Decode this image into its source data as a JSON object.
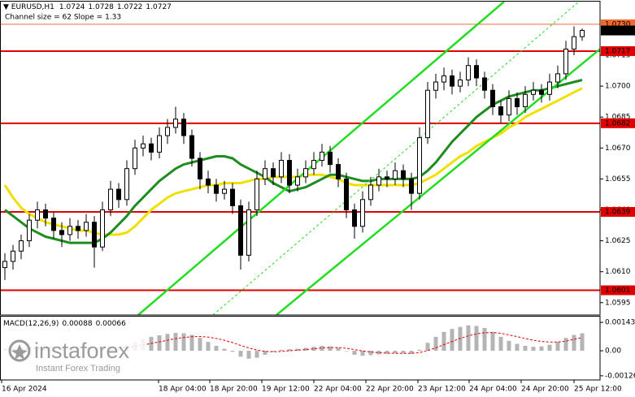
{
  "chart_data": {
    "type": "candlestick",
    "symbol": "EURUSD,H1",
    "subtitle": "Channel size = 62 Slope = 1.33",
    "xlim": [
      -0.6,
      73.2
    ],
    "xticks": [
      {
        "value": -0.4,
        "label": "16 Apr 2024"
      },
      {
        "value": 18.9,
        "label": "18 Apr 04:00"
      },
      {
        "value": 25.2,
        "label": "18 Apr 20:00"
      },
      {
        "value": 31.6,
        "label": "19 Apr 12:00"
      },
      {
        "value": 38.0,
        "label": "22 Apr 04:00"
      },
      {
        "value": 44.4,
        "label": "22 Apr 20:00"
      },
      {
        "value": 50.8,
        "label": "23 Apr 12:00"
      },
      {
        "value": 57.1,
        "label": "24 Apr 04:00"
      },
      {
        "value": 63.5,
        "label": "24 Apr 20:00"
      },
      {
        "value": 70.0,
        "label": "25 Apr 12:00"
      }
    ],
    "ylim": [
      1.0589,
      1.0741
    ],
    "yticks": [
      1.0715,
      {
        "value": 1.07,
        "label": "1.0700"
      },
      1.0685,
      {
        "value": 1.067,
        "label": "1.0670"
      },
      1.0655,
      {
        "value": 1.064,
        "label": "1.0640"
      },
      1.0625,
      {
        "value": 1.061,
        "label": "1.0610"
      },
      1.0595
    ],
    "ohlc": [
      [
        1.0612,
        1.0619,
        1.0606,
        1.0615
      ],
      [
        1.0615,
        1.0623,
        1.0611,
        1.062
      ],
      [
        1.062,
        1.0628,
        1.0616,
        1.0625
      ],
      [
        1.0625,
        1.0638,
        1.0622,
        1.0635
      ],
      [
        1.0635,
        1.0644,
        1.0631,
        1.064
      ],
      [
        1.064,
        1.0643,
        1.0632,
        1.0636
      ],
      [
        1.0636,
        1.0639,
        1.0626,
        1.063
      ],
      [
        1.063,
        1.0634,
        1.0622,
        1.0628
      ],
      [
        1.0628,
        1.0636,
        1.0625,
        1.0632
      ],
      [
        1.0632,
        1.0635,
        1.0626,
        1.063
      ],
      [
        1.063,
        1.0638,
        1.0627,
        1.0634
      ],
      [
        1.0634,
        1.0637,
        1.0612,
        1.0622
      ],
      [
        1.0622,
        1.0644,
        1.062,
        1.064
      ],
      [
        1.064,
        1.0654,
        1.0637,
        1.065
      ],
      [
        1.065,
        1.0653,
        1.0641,
        1.0645
      ],
      [
        1.0645,
        1.0664,
        1.0642,
        1.066
      ],
      [
        1.066,
        1.0674,
        1.0657,
        1.067
      ],
      [
        1.067,
        1.0676,
        1.0666,
        1.0672
      ],
      [
        1.0672,
        1.0675,
        1.0664,
        1.0668
      ],
      [
        1.0668,
        1.068,
        1.0665,
        1.0676
      ],
      [
        1.0676,
        1.0684,
        1.0672,
        1.068
      ],
      [
        1.068,
        1.069,
        1.0677,
        1.0684
      ],
      [
        1.0684,
        1.0687,
        1.0672,
        1.0676
      ],
      [
        1.0676,
        1.0679,
        1.0661,
        1.0665
      ],
      [
        1.0665,
        1.0668,
        1.065,
        1.0655
      ],
      [
        1.0655,
        1.0659,
        1.0648,
        1.0652
      ],
      [
        1.0652,
        1.0655,
        1.0644,
        1.0648
      ],
      [
        1.0648,
        1.0654,
        1.0645,
        1.065
      ],
      [
        1.065,
        1.0653,
        1.0638,
        1.0642
      ],
      [
        1.0642,
        1.0645,
        1.0611,
        1.0618
      ],
      [
        1.0618,
        1.0644,
        1.0615,
        1.064
      ],
      [
        1.064,
        1.0659,
        1.0637,
        1.0655
      ],
      [
        1.0655,
        1.0664,
        1.0652,
        1.066
      ],
      [
        1.066,
        1.0663,
        1.0652,
        1.0656
      ],
      [
        1.0656,
        1.0668,
        1.0653,
        1.0664
      ],
      [
        1.0664,
        1.0667,
        1.0648,
        1.0652
      ],
      [
        1.0652,
        1.066,
        1.0649,
        1.0656
      ],
      [
        1.0656,
        1.0664,
        1.0653,
        1.066
      ],
      [
        1.066,
        1.0668,
        1.0657,
        1.0664
      ],
      [
        1.0664,
        1.0672,
        1.0661,
        1.0668
      ],
      [
        1.0668,
        1.0671,
        1.0658,
        1.0662
      ],
      [
        1.0662,
        1.0665,
        1.0651,
        1.0655
      ],
      [
        1.0655,
        1.0658,
        1.0636,
        1.064
      ],
      [
        1.064,
        1.0643,
        1.0626,
        1.0632
      ],
      [
        1.0632,
        1.0649,
        1.0629,
        1.0645
      ],
      [
        1.0645,
        1.0656,
        1.0642,
        1.0652
      ],
      [
        1.0652,
        1.066,
        1.0649,
        1.0656
      ],
      [
        1.0656,
        1.0659,
        1.0651,
        1.0655
      ],
      [
        1.0655,
        1.0663,
        1.0652,
        1.0659
      ],
      [
        1.0659,
        1.0662,
        1.0651,
        1.0655
      ],
      [
        1.0655,
        1.0658,
        1.064,
        1.0648
      ],
      [
        1.0648,
        1.068,
        1.0645,
        1.0675
      ],
      [
        1.0675,
        1.0702,
        1.0672,
        1.0698
      ],
      [
        1.0698,
        1.0706,
        1.0694,
        1.0702
      ],
      [
        1.0702,
        1.0709,
        1.0698,
        1.0705
      ],
      [
        1.0705,
        1.0708,
        1.0696,
        1.07
      ],
      [
        1.07,
        1.0707,
        1.0697,
        1.0703
      ],
      [
        1.0703,
        1.0714,
        1.07,
        1.071
      ],
      [
        1.071,
        1.0713,
        1.07,
        1.0704
      ],
      [
        1.0704,
        1.0707,
        1.0694,
        1.0698
      ],
      [
        1.0698,
        1.0701,
        1.0686,
        1.069
      ],
      [
        1.069,
        1.0693,
        1.0682,
        1.0686
      ],
      [
        1.0686,
        1.0698,
        1.0683,
        1.0694
      ],
      [
        1.0694,
        1.0697,
        1.0686,
        1.069
      ],
      [
        1.069,
        1.07,
        1.0687,
        1.0696
      ],
      [
        1.0696,
        1.0702,
        1.0693,
        1.0698
      ],
      [
        1.0698,
        1.0701,
        1.0692,
        1.0696
      ],
      [
        1.0696,
        1.0706,
        1.0693,
        1.0702
      ],
      [
        1.0702,
        1.071,
        1.0699,
        1.0706
      ],
      [
        1.0706,
        1.0722,
        1.0703,
        1.0718
      ],
      [
        1.0718,
        1.0729,
        1.0715,
        1.0724
      ],
      [
        1.0724,
        1.0728,
        1.0722,
        1.0727
      ]
    ],
    "series": [
      {
        "color": "#f0e000",
        "values": [
          1.0652,
          1.0646,
          1.0641,
          1.0638,
          1.0636,
          1.0634,
          1.0633,
          1.0632,
          1.0631,
          1.063,
          1.063,
          1.0629,
          1.0628,
          1.0628,
          1.0628,
          1.0629,
          1.0632,
          1.0636,
          1.064,
          1.0643,
          1.0646,
          1.0648,
          1.0649,
          1.065,
          1.0651,
          1.0652,
          1.0652,
          1.0653,
          1.0653,
          1.0653,
          1.0654,
          1.0655,
          1.0655,
          1.0656,
          1.0656,
          1.0656,
          1.0656,
          1.0657,
          1.0657,
          1.0657,
          1.0656,
          1.0655,
          1.0653,
          1.0652,
          1.0652,
          1.0652,
          1.0652,
          1.0652,
          1.0652,
          1.0652,
          1.0652,
          1.0653,
          1.0655,
          1.0657,
          1.066,
          1.0663,
          1.0666,
          1.0668,
          1.0671,
          1.0673,
          1.0675,
          1.0677,
          1.068,
          1.0682,
          1.0685,
          1.0687,
          1.0689,
          1.0691,
          1.0693,
          1.0695,
          1.0697,
          1.0699
        ]
      },
      {
        "color": "#1e8c1e",
        "values": [
          1.064,
          1.0637,
          1.0634,
          1.0631,
          1.0629,
          1.0627,
          1.0626,
          1.0625,
          1.0624,
          1.0624,
          1.0624,
          1.0624,
          1.0626,
          1.0629,
          1.0633,
          1.0637,
          1.0642,
          1.0646,
          1.065,
          1.0654,
          1.0657,
          1.066,
          1.0662,
          1.0663,
          1.0664,
          1.0665,
          1.0666,
          1.0666,
          1.0665,
          1.0662,
          1.066,
          1.0658,
          1.0656,
          1.0653,
          1.0651,
          1.0649,
          1.065,
          1.0651,
          1.0653,
          1.0655,
          1.0657,
          1.0657,
          1.0656,
          1.0655,
          1.0654,
          1.0654,
          1.0655,
          1.0655,
          1.0655,
          1.0655,
          1.0655,
          1.0656,
          1.0659,
          1.0663,
          1.0668,
          1.0673,
          1.0677,
          1.0681,
          1.0685,
          1.0688,
          1.0691,
          1.0693,
          1.0695,
          1.0696,
          1.0697,
          1.0698,
          1.0698,
          1.0699,
          1.07,
          1.0701,
          1.0702,
          1.0703
        ]
      }
    ],
    "channel": [
      {
        "x": [
          16.4,
          61.4
        ],
        "y": [
          1.0589,
          1.0741
        ],
        "color": "#22dd22",
        "dashed": false
      },
      {
        "x": [
          33.4,
          73.2
        ],
        "y": [
          1.0589,
          1.0718
        ],
        "color": "#22dd22",
        "dashed": false
      },
      {
        "x": [
          25.6,
          70.6
        ],
        "y": [
          1.0589,
          1.0741
        ],
        "color": "#22dd22",
        "dashed": true
      }
    ],
    "levels": [
      {
        "price": 1.073,
        "label": "1.0730",
        "color": "#f06a30"
      },
      {
        "price": 1.0717,
        "label": "1.0717",
        "color": "#e00000"
      },
      {
        "price": 1.0682,
        "label": "1.0682",
        "color": "#e00000"
      },
      {
        "price": 1.0639,
        "label": "1.0639",
        "color": "#e00000"
      },
      {
        "price": 1.0601,
        "label": "1.0601",
        "color": "#e00000"
      }
    ],
    "macd": {
      "name": "MACD(12,26,9)",
      "ylim": [
        -0.00147,
        0.00172
      ],
      "yticks": [
        0.00143,
        {
          "value": 0,
          "label": "0.00"
        },
        -0.00126
      ],
      "hist_color": "#b4b4b4",
      "signal_color": "#e00000",
      "hist": [
        0.0001,
        0.00012,
        0.00015,
        0.0002,
        0.00025,
        0.00022,
        0.00018,
        0.00015,
        0.00014,
        0.00012,
        0.0001,
        5e-05,
        8e-05,
        0.00015,
        0.0002,
        0.0003,
        0.00045,
        0.0006,
        0.0007,
        0.00078,
        0.00085,
        0.0009,
        0.00088,
        0.0008,
        0.00065,
        0.00045,
        0.00025,
        0.0001,
        -5e-05,
        -0.0003,
        -0.0004,
        -0.00035,
        -0.0002,
        -5e-05,
        5e-05,
        8e-05,
        0.0001,
        0.00015,
        0.0002,
        0.00025,
        0.00022,
        0.00015,
        0,
        -0.0002,
        -0.00025,
        -0.00022,
        -0.00018,
        -0.00015,
        -0.00012,
        -0.00012,
        -0.00015,
        5e-05,
        0.0004,
        0.0007,
        0.00095,
        0.0011,
        0.0012,
        0.00128,
        0.00125,
        0.00115,
        0.00095,
        0.0007,
        0.0005,
        0.00035,
        0.00025,
        0.0002,
        0.00022,
        0.0003,
        0.00045,
        0.00065,
        0.0008,
        0.00088
      ],
      "signal": [
        5e-05,
        7e-05,
        9e-05,
        0.00011,
        0.00014,
        0.00016,
        0.00017,
        0.00017,
        0.00017,
        0.00016,
        0.00015,
        0.00013,
        0.00012,
        0.00012,
        0.00014,
        0.00017,
        0.00022,
        0.00029,
        0.00037,
        0.00045,
        0.00053,
        0.00061,
        0.00067,
        0.00071,
        0.00072,
        0.00069,
        0.00062,
        0.00053,
        0.00041,
        0.00027,
        0.00014,
        4e-05,
        -3e-05,
        -5e-05,
        -3e-05,
        0,
        3e-05,
        6e-05,
        0.0001,
        0.00014,
        0.00016,
        0.00016,
        0.00013,
        6e-05,
        -1e-05,
        -6e-05,
        -0.0001,
        -0.00012,
        -0.00013,
        -0.00013,
        -0.00013,
        -9e-05,
        1e-05,
        0.00015,
        0.00031,
        0.00047,
        0.00062,
        0.00075,
        0.00085,
        0.00091,
        0.00092,
        0.00088,
        0.0008,
        0.00071,
        0.00062,
        0.00053,
        0.00047,
        0.00044,
        0.00044,
        0.00048,
        0.00058,
        0.00066
      ]
    }
  },
  "watermark": {
    "brand": "instaforex",
    "tagline": "Instant Forex Trading"
  }
}
